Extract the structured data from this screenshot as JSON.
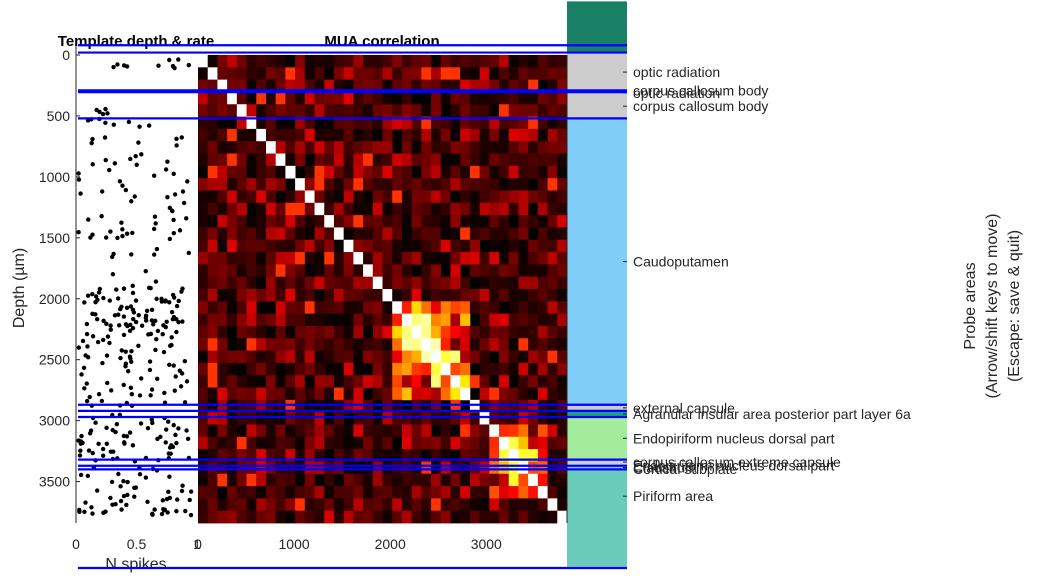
{
  "chart_data": [
    {
      "type": "scatter",
      "title": "Template depth & rate",
      "xlabel": "N spikes",
      "ylabel": "Depth (µm)",
      "xlim": [
        0,
        1
      ],
      "ylim": [
        3840,
        -80
      ],
      "x_ticks": [
        "0",
        "0.5",
        "1"
      ],
      "y_ticks": [
        "0",
        "500",
        "1000",
        "1500",
        "2000",
        "2500",
        "3000",
        "3500"
      ],
      "y_tick_values": [
        0,
        500,
        1000,
        1500,
        2000,
        2500,
        3000,
        3500
      ],
      "note_points": "approx. 350 templates; values estimated from the plot",
      "points": []
    },
    {
      "type": "heatmap",
      "title": "MUA correlation",
      "xlim": [
        0,
        3840
      ],
      "ylim": [
        3840,
        0
      ],
      "x_ticks": [
        "0",
        "1000",
        "2000",
        "3000"
      ],
      "x_tick_values": [
        0,
        1000,
        2000,
        3000
      ],
      "colormap": "hot",
      "diagonal_value": 1,
      "bin_size_um": 100,
      "high_correlation_blocks": [
        {
          "from": 2000,
          "to": 2800,
          "level": 0.6
        },
        {
          "from": 3000,
          "to": 3600,
          "level": 0.5
        }
      ]
    }
  ],
  "boundary_lines_depth_um": [
    -80,
    -20,
    290,
    305,
    520,
    2870,
    2920,
    2970,
    3320,
    3370,
    3400
  ],
  "boundary_line_color": "#0000ff",
  "probe_areas": {
    "label_lines": [
      "Probe areas",
      "(Arrow/shift keys to move)",
      "(Escape: save & quit)"
    ],
    "regions": [
      {
        "name": "",
        "from": -440,
        "to": -20,
        "color": "#1a8066"
      },
      {
        "name": "optic radiation",
        "from": -20,
        "to": 280,
        "color": "#cccccc"
      },
      {
        "name": "corpus callosum body",
        "from": 280,
        "to": 300,
        "color": "#cccccc"
      },
      {
        "name": "optic radiation",
        "from": 300,
        "to": 320,
        "color": "#cccccc"
      },
      {
        "name": "corpus callosum body",
        "from": 320,
        "to": 520,
        "color": "#cccccc"
      },
      {
        "name": "Caudoputamen",
        "from": 520,
        "to": 2870,
        "color": "#80cdf8"
      },
      {
        "name": "external capsule",
        "from": 2870,
        "to": 2920,
        "color": "#cccccc"
      },
      {
        "name": "Agranular insular area posterior part layer 6a",
        "from": 2920,
        "to": 2970,
        "color": "#209e88"
      },
      {
        "name": "Endopiriform nucleus dorsal part",
        "from": 2970,
        "to": 3320,
        "color": "#a4eb9c"
      },
      {
        "name": "corpus callosum extreme capsule",
        "from": 3320,
        "to": 3360,
        "color": "#cccccc"
      },
      {
        "name": "Endopiriform nucleus dorsal part",
        "from": 3360,
        "to": 3380,
        "color": "#a4eb9c"
      },
      {
        "name": "Claustrum",
        "from": 3380,
        "to": 3390,
        "color": "#8ad3c0"
      },
      {
        "name": "Cortical subplate",
        "from": 3390,
        "to": 3400,
        "color": "#8ad3c0"
      },
      {
        "name": "Piriform area",
        "from": 3400,
        "to": 4200,
        "color": "#6acbba"
      }
    ]
  }
}
